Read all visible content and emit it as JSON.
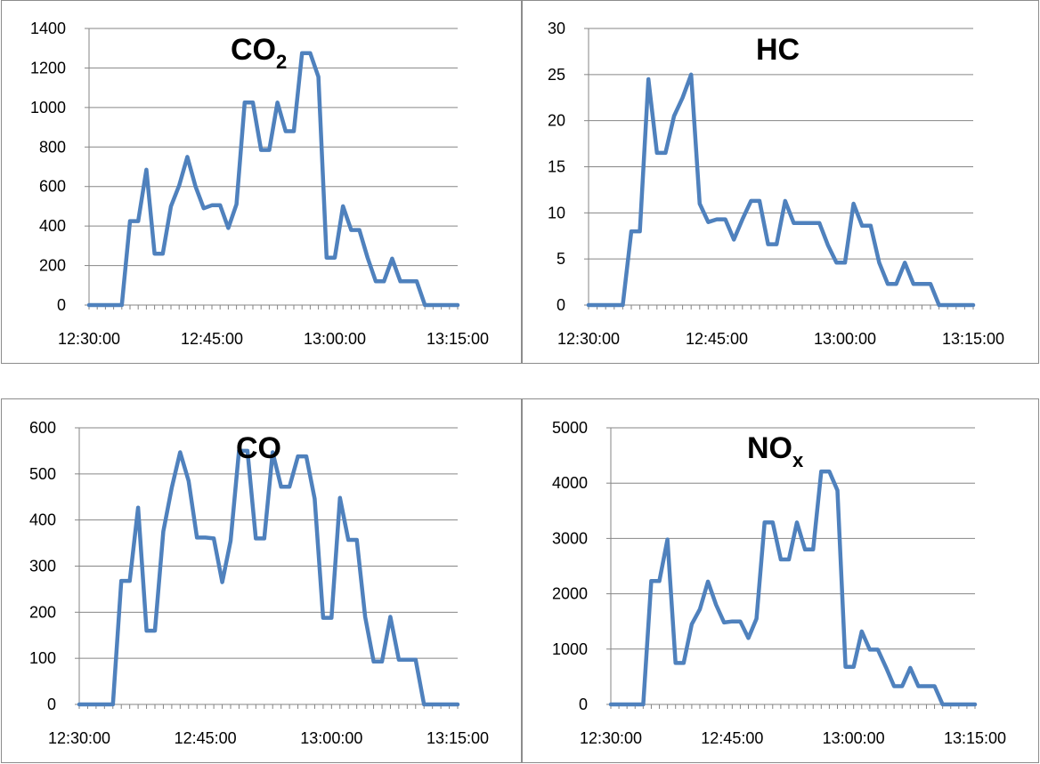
{
  "series_color": "#4f81bd",
  "chart_data": [
    {
      "type": "line",
      "title": "CO",
      "title_subscript": "2",
      "x_ticks": [
        "12:30:00",
        "12:45:00",
        "13:00:00",
        "13:15:00"
      ],
      "y_ticks": [
        "0",
        "200",
        "400",
        "600",
        "800",
        "1000",
        "1200",
        "1400"
      ],
      "ylim": [
        0,
        1400
      ],
      "xlim": [
        "12:30:00",
        "13:15:00"
      ],
      "grid": true,
      "x": [
        "12:30:00",
        "12:31:00",
        "12:32:00",
        "12:33:00",
        "12:34:00",
        "12:35:00",
        "12:36:00",
        "12:37:00",
        "12:38:00",
        "12:39:00",
        "12:40:00",
        "12:41:00",
        "12:42:00",
        "12:43:00",
        "12:44:00",
        "12:45:00",
        "12:46:00",
        "12:47:00",
        "12:48:00",
        "12:49:00",
        "12:50:00",
        "12:51:00",
        "12:52:00",
        "12:53:00",
        "12:54:00",
        "12:55:00",
        "12:56:00",
        "12:57:00",
        "12:58:00",
        "12:59:00",
        "13:00:00",
        "13:01:00",
        "13:02:00",
        "13:03:00",
        "13:04:00",
        "13:05:00",
        "13:06:00",
        "13:07:00",
        "13:08:00",
        "13:09:00",
        "13:10:00",
        "13:11:00",
        "13:12:00",
        "13:13:00",
        "13:14:00",
        "13:15:00"
      ],
      "values": [
        0,
        0,
        0,
        0,
        0,
        425,
        425,
        685,
        260,
        260,
        500,
        605,
        750,
        600,
        490,
        505,
        505,
        390,
        510,
        1025,
        1025,
        785,
        785,
        1025,
        880,
        880,
        1275,
        1275,
        1155,
        240,
        240,
        500,
        380,
        380,
        240,
        120,
        120,
        235,
        120,
        120,
        120,
        0,
        0,
        0,
        0,
        0
      ]
    },
    {
      "type": "line",
      "title": "HC",
      "x_ticks": [
        "12:30:00",
        "12:45:00",
        "13:00:00",
        "13:15:00"
      ],
      "y_ticks": [
        "0",
        "5",
        "10",
        "15",
        "20",
        "25",
        "30"
      ],
      "ylim": [
        0,
        30
      ],
      "xlim": [
        "12:30:00",
        "13:15:00"
      ],
      "grid": true,
      "x": [
        "12:30:00",
        "12:31:00",
        "12:32:00",
        "12:33:00",
        "12:34:00",
        "12:35:00",
        "12:36:00",
        "12:37:00",
        "12:38:00",
        "12:39:00",
        "12:40:00",
        "12:41:00",
        "12:42:00",
        "12:43:00",
        "12:44:00",
        "12:45:00",
        "12:46:00",
        "12:47:00",
        "12:48:00",
        "12:49:00",
        "12:50:00",
        "12:51:00",
        "12:52:00",
        "12:53:00",
        "12:54:00",
        "12:55:00",
        "12:56:00",
        "12:57:00",
        "12:58:00",
        "12:59:00",
        "13:00:00",
        "13:01:00",
        "13:02:00",
        "13:03:00",
        "13:04:00",
        "13:05:00",
        "13:06:00",
        "13:07:00",
        "13:08:00",
        "13:09:00",
        "13:10:00",
        "13:11:00",
        "13:12:00",
        "13:13:00",
        "13:14:00",
        "13:15:00"
      ],
      "values": [
        0,
        0,
        0,
        0,
        0,
        8,
        8,
        24.5,
        16.5,
        16.5,
        20.5,
        22.5,
        25,
        11,
        9,
        9.3,
        9.3,
        7.1,
        9.3,
        11.3,
        11.3,
        6.6,
        6.6,
        11.3,
        8.9,
        8.9,
        8.9,
        8.9,
        6.5,
        4.6,
        4.6,
        11,
        8.6,
        8.6,
        4.6,
        2.3,
        2.3,
        4.6,
        2.3,
        2.3,
        2.3,
        0,
        0,
        0,
        0,
        0
      ]
    },
    {
      "type": "line",
      "title": "CO",
      "x_ticks": [
        "12:30:00",
        "12:45:00",
        "13:00:00",
        "13:15:00"
      ],
      "y_ticks": [
        "0",
        "100",
        "200",
        "300",
        "400",
        "500",
        "600"
      ],
      "ylim": [
        0,
        600
      ],
      "xlim": [
        "12:30:00",
        "13:15:00"
      ],
      "grid": true,
      "x": [
        "12:30:00",
        "12:31:00",
        "12:32:00",
        "12:33:00",
        "12:34:00",
        "12:35:00",
        "12:36:00",
        "12:37:00",
        "12:38:00",
        "12:39:00",
        "12:40:00",
        "12:41:00",
        "12:42:00",
        "12:43:00",
        "12:44:00",
        "12:45:00",
        "12:46:00",
        "12:47:00",
        "12:48:00",
        "12:49:00",
        "12:50:00",
        "12:51:00",
        "12:52:00",
        "12:53:00",
        "12:54:00",
        "12:55:00",
        "12:56:00",
        "12:57:00",
        "12:58:00",
        "12:59:00",
        "13:00:00",
        "13:01:00",
        "13:02:00",
        "13:03:00",
        "13:04:00",
        "13:05:00",
        "13:06:00",
        "13:07:00",
        "13:08:00",
        "13:09:00",
        "13:10:00",
        "13:11:00",
        "13:12:00",
        "13:13:00",
        "13:14:00",
        "13:15:00"
      ],
      "values": [
        0,
        0,
        0,
        0,
        0,
        268,
        268,
        427,
        160,
        160,
        375,
        470,
        547,
        485,
        362,
        362,
        360,
        265,
        355,
        550,
        550,
        360,
        360,
        547,
        472,
        472,
        538,
        538,
        446,
        188,
        188,
        448,
        357,
        357,
        190,
        93,
        93,
        190,
        97,
        97,
        97,
        0,
        0,
        0,
        0,
        0
      ]
    },
    {
      "type": "line",
      "title": "NO",
      "title_subscript": "x",
      "x_ticks": [
        "12:30:00",
        "12:45:00",
        "13:00:00",
        "13:15:00"
      ],
      "y_ticks": [
        "0",
        "1000",
        "2000",
        "3000",
        "4000",
        "5000"
      ],
      "ylim": [
        0,
        5000
      ],
      "xlim": [
        "12:30:00",
        "13:15:00"
      ],
      "grid": true,
      "x": [
        "12:30:00",
        "12:31:00",
        "12:32:00",
        "12:33:00",
        "12:34:00",
        "12:35:00",
        "12:36:00",
        "12:37:00",
        "12:38:00",
        "12:39:00",
        "12:40:00",
        "12:41:00",
        "12:42:00",
        "12:43:00",
        "12:44:00",
        "12:45:00",
        "12:46:00",
        "12:47:00",
        "12:48:00",
        "12:49:00",
        "12:50:00",
        "12:51:00",
        "12:52:00",
        "12:53:00",
        "12:54:00",
        "12:55:00",
        "12:56:00",
        "12:57:00",
        "12:58:00",
        "12:59:00",
        "13:00:00",
        "13:01:00",
        "13:02:00",
        "13:03:00",
        "13:04:00",
        "13:05:00",
        "13:06:00",
        "13:07:00",
        "13:08:00",
        "13:09:00",
        "13:10:00",
        "13:11:00",
        "13:12:00",
        "13:13:00",
        "13:14:00",
        "13:15:00"
      ],
      "values": [
        0,
        0,
        0,
        0,
        0,
        2230,
        2230,
        2980,
        750,
        750,
        1450,
        1720,
        2220,
        1800,
        1480,
        1500,
        1500,
        1200,
        1550,
        3290,
        3290,
        2620,
        2620,
        3290,
        2800,
        2800,
        4210,
        4210,
        3870,
        680,
        680,
        1320,
        990,
        990,
        670,
        330,
        330,
        660,
        330,
        330,
        330,
        0,
        0,
        0,
        0,
        0
      ]
    }
  ]
}
